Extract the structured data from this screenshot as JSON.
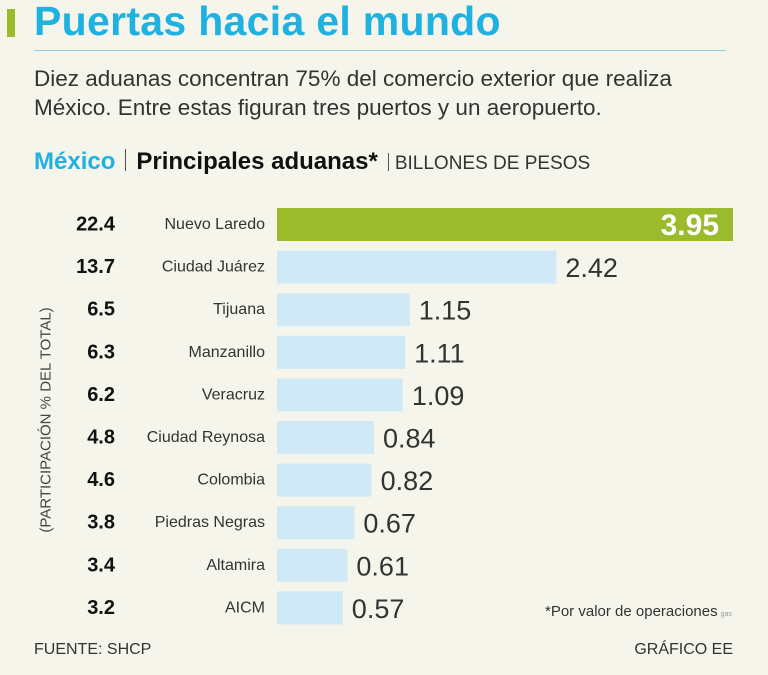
{
  "title": "Puertas hacia el mundo",
  "subtitle": "Diez aduanas concentran 75% del comercio exterior que realiza México. Entre estas figuran tres puertos y un aeropuerto.",
  "header": {
    "country": "México",
    "chart_title": "Principales aduanas*",
    "units": "BILLONES DE PESOS"
  },
  "footnote": "*Por valor de operaciones",
  "footnote_tag": "gas",
  "source": "FUENTE: SHCP",
  "credit": "GRÁFICO EE",
  "colors": {
    "title": "#1fb1e0",
    "bar": "#cfe9f7",
    "highlight_bar": "#9bbb2d",
    "accent": "#9bbb2d"
  },
  "chart_data": {
    "type": "bar",
    "orientation": "horizontal",
    "title": "Principales aduanas*",
    "units": "BILLONES DE PESOS",
    "ylabel": "(PARTICIPACIÓN % DEL TOTAL)",
    "categories": [
      "Nuevo Laredo",
      "Ciudad Juárez",
      "Tijuana",
      "Manzanillo",
      "Veracruz",
      "Ciudad Reynosa",
      "Colombia",
      "Piedras Negras",
      "Altamira",
      "AICM"
    ],
    "values": [
      3.95,
      2.42,
      1.15,
      1.11,
      1.09,
      0.84,
      0.82,
      0.67,
      0.61,
      0.57
    ],
    "value_labels": [
      "3.95",
      "2.42",
      "1.15",
      "1.11",
      "1.09",
      "0.84",
      "0.82",
      "0.67",
      "0.61",
      "0.57"
    ],
    "share_percent": [
      "22.4",
      "13.7",
      "6.5",
      "6.3",
      "6.2",
      "4.8",
      "4.6",
      "3.8",
      "3.4",
      "3.2"
    ],
    "highlight_index": 0,
    "xlim": [
      0,
      3.95
    ]
  }
}
